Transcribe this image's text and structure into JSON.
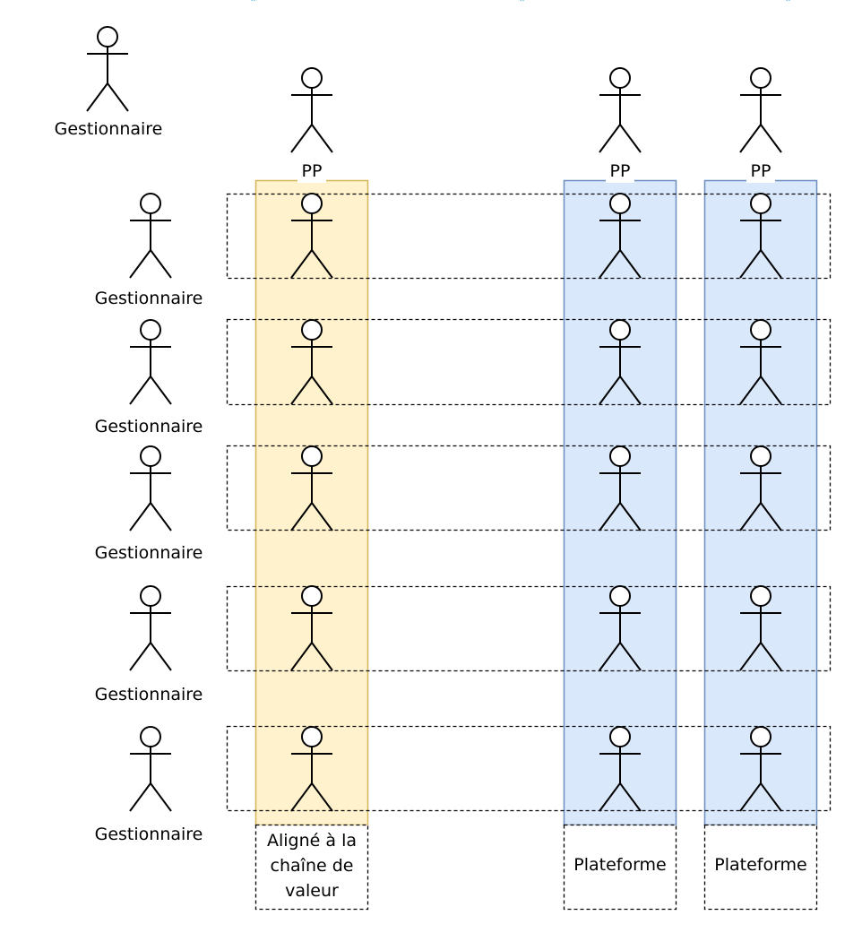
{
  "diagram": {
    "manager_label": "Gestionnaire",
    "team_header_label": "PP",
    "columns": [
      {
        "id": "col-value-stream",
        "header": "PP",
        "footer_lines": [
          "Aligné à la",
          "chaîne de",
          "valeur"
        ],
        "fill": "#fff2cc",
        "stroke": "#d6b656"
      },
      {
        "id": "col-platform-1",
        "header": "PP",
        "footer_lines": [
          "Plateforme"
        ],
        "fill": "#dae8fc",
        "stroke": "#6c8ebf"
      },
      {
        "id": "col-platform-2",
        "header": "PP",
        "footer_lines": [
          "Plateforme"
        ],
        "fill": "#dae8fc",
        "stroke": "#6c8ebf"
      }
    ],
    "rows": [
      {
        "manager": "Gestionnaire"
      },
      {
        "manager": "Gestionnaire"
      },
      {
        "manager": "Gestionnaire"
      },
      {
        "manager": "Gestionnaire"
      },
      {
        "manager": "Gestionnaire"
      }
    ],
    "top_manager": "Gestionnaire",
    "top_marks_color": "#1ba1e2"
  }
}
